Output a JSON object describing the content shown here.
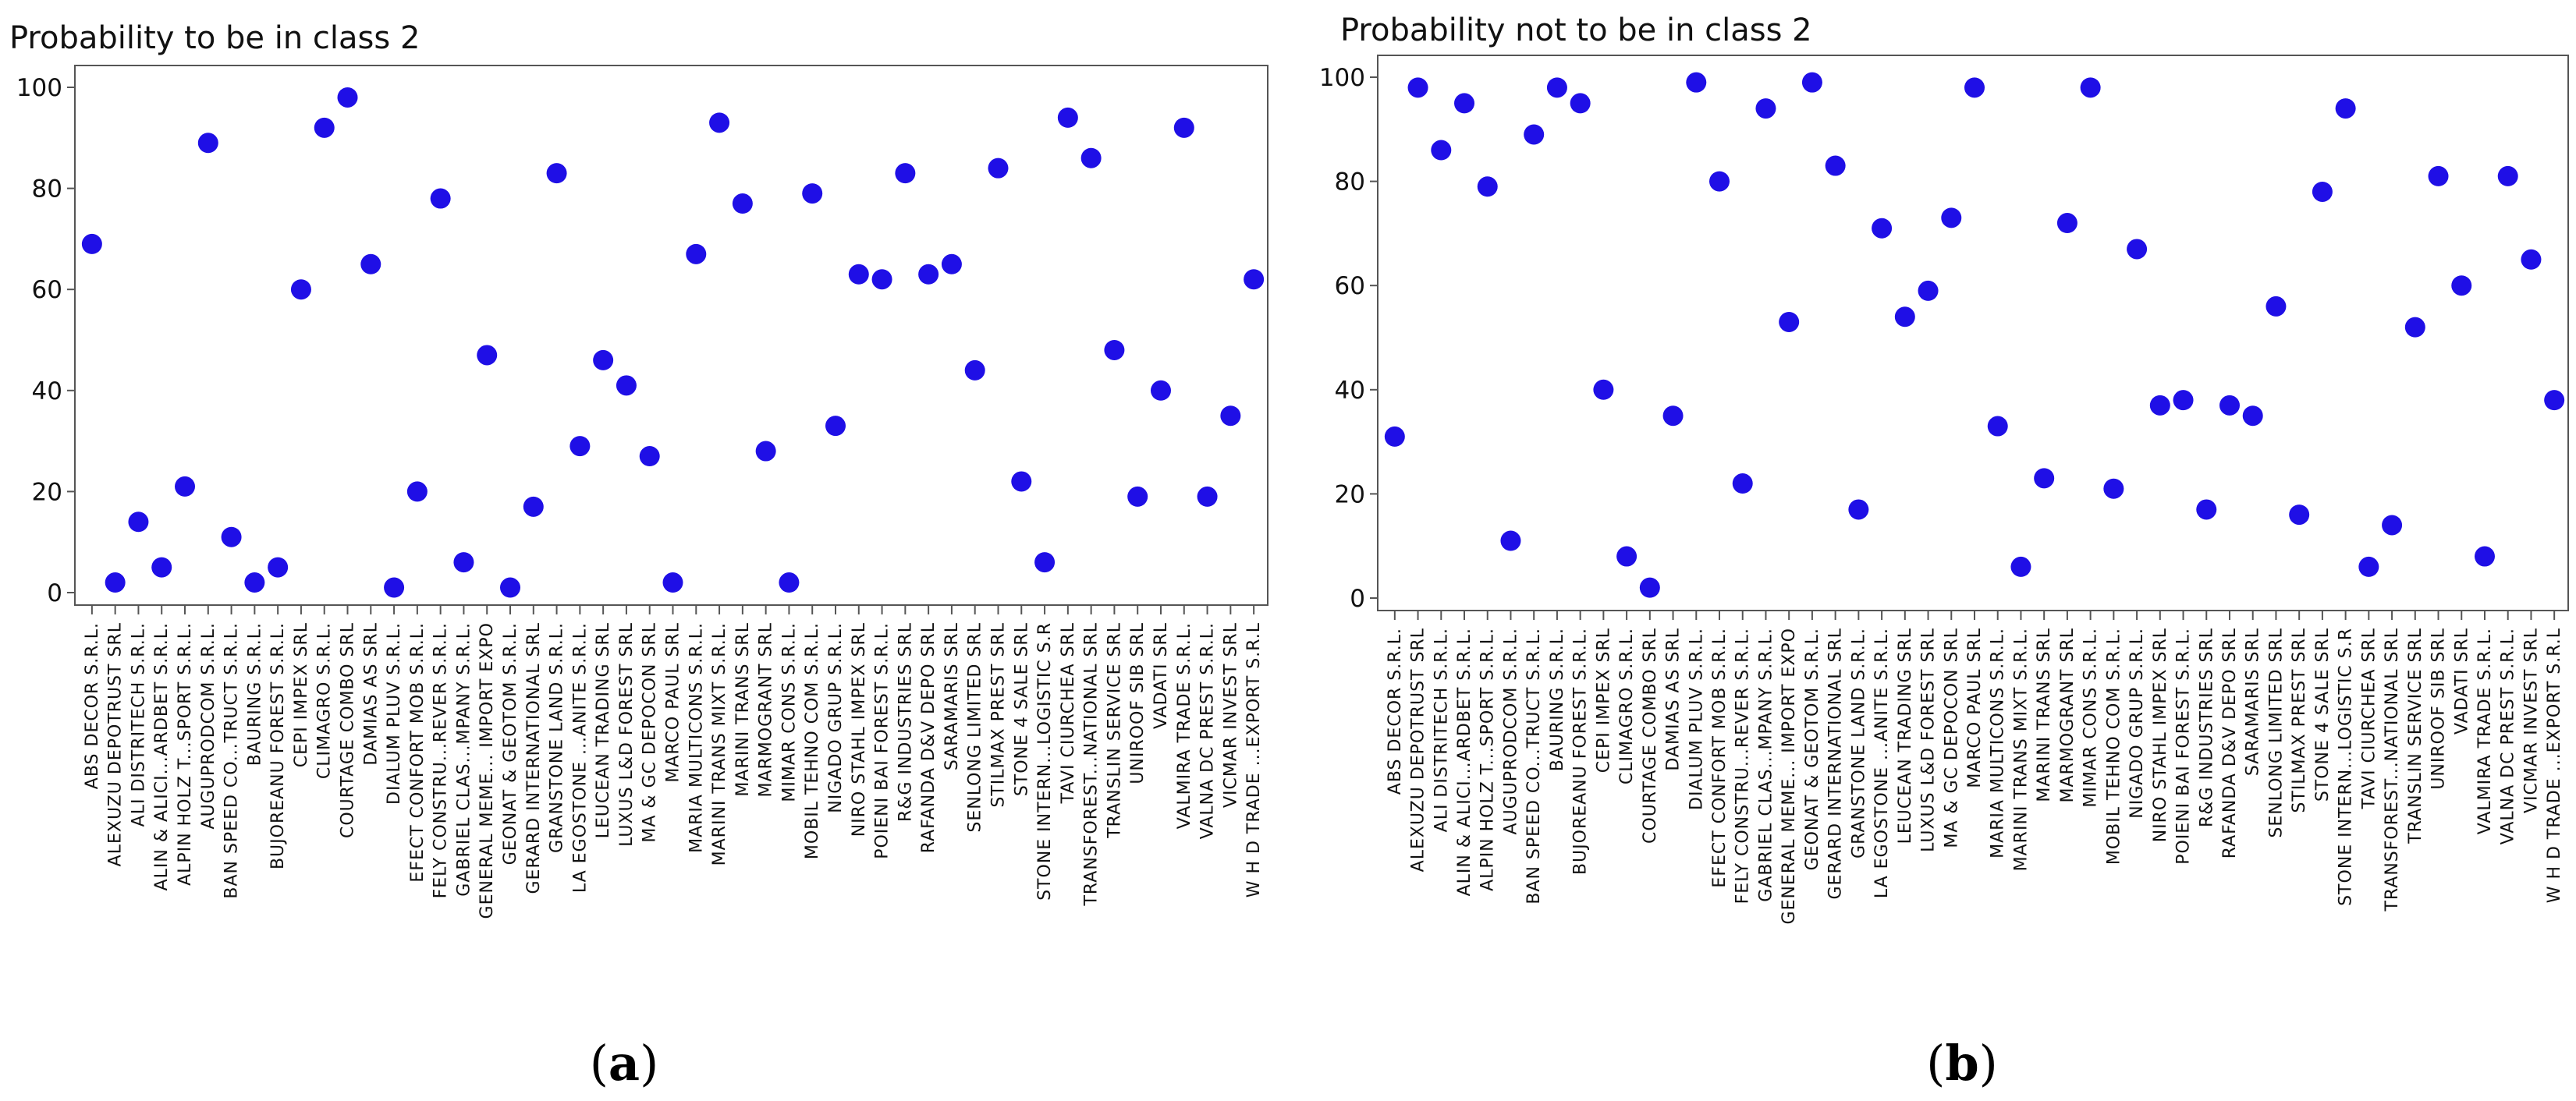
{
  "figure": {
    "panels": [
      "a",
      "b"
    ]
  },
  "colors": {
    "marker": "#1f0fe6",
    "axis": "#555555",
    "background": "#ffffff"
  },
  "chart_data": [
    {
      "type": "scatter",
      "title": "Probability to be in class 2",
      "panel_label": "a",
      "xlabel": "",
      "ylabel": "",
      "ylim": [
        0,
        100
      ],
      "yticks": [
        0,
        20,
        40,
        60,
        80,
        100
      ],
      "grid": false,
      "categories": [
        "ABS DECOR S.R.L.",
        "ALEXUZU DEPOTRUST SRL",
        "ALI DISTRITECH S.R.L.",
        "ALIN & ALICI...ARDBET S.R.L.",
        "ALPIN HOLZ T...SPORT S.R.L.",
        "AUGUPRODCOM S.R.L.",
        "BAN SPEED CO...TRUCT S.R.L.",
        "BAURING S.R.L.",
        "BUJOREANU FOREST S.R.L.",
        "CEPI IMPEX SRL",
        "CLIMAGRO S.R.L.",
        "COURTAGE COMBO SRL",
        "DAMIAS AS SRL",
        "DIALUM PLUV S.R.L.",
        "EFECT CONFORT MOB S.R.L.",
        "FELY CONSTRU...REVER S.R.L.",
        "GABRIEL CLAS...MPANY S.R.L.",
        "GENERAL MEME... IMPORT EXPO",
        "GEONAT & GEOTOM S.R.L.",
        "GERARD INTERNATIONAL SRL",
        "GRANSTONE LAND S.R.L.",
        "LA EGOSTONE ...ANITE S.R.L.",
        "LEUCEAN TRADING SRL",
        "LUXUS L&D FOREST SRL",
        "MA & GC DEPOCON SRL",
        "MARCO PAUL SRL",
        "MARIA MULTICONS S.R.L.",
        "MARINI TRANS MIXT S.R.L.",
        "MARINI TRANS SRL",
        "MARMOGRANT SRL",
        "MIMAR CONS S.R.L.",
        "MOBIL TEHNO COM S.R.L.",
        "NIGADO GRUP S.R.L.",
        "NIRO STAHL IMPEX SRL",
        "POIENI BAI FOREST S.R.L.",
        "R&G INDUSTRIES SRL",
        "RAFANDA D&V DEPO SRL",
        "SARAMARIS SRL",
        "SENLONG LIMITED SRL",
        "STILMAX PREST SRL",
        "STONE 4 SALE SRL",
        "STONE INTERN...LOGISTIC S.R",
        "TAVI CIURCHEA SRL",
        "TRANSFOREST...NATIONAL SRL",
        "TRANSLIN SERVICE SRL",
        "UNIROOF SIB SRL",
        "VADATI SRL",
        "VALMIRA TRADE S.R.L.",
        "VALNA DC PREST S.R.L.",
        "VICMAR INVEST SRL",
        "W H D TRADE ...EXPORT S.R.L"
      ],
      "values": [
        69,
        2,
        14,
        5,
        21,
        89,
        11,
        2,
        5,
        60,
        92,
        98,
        65,
        1,
        20,
        78,
        6,
        47,
        1,
        17,
        83,
        29,
        46,
        41,
        27,
        2,
        67,
        93,
        77,
        28,
        2,
        79,
        33,
        63,
        62,
        83,
        63,
        65,
        44,
        84,
        22,
        6,
        94,
        86,
        48,
        19,
        40,
        92,
        19,
        35,
        62
      ]
    },
    {
      "type": "scatter",
      "title": "Probability not to be in class 2",
      "panel_label": "b",
      "xlabel": "",
      "ylabel": "",
      "ylim": [
        0,
        100
      ],
      "yticks": [
        0,
        20,
        40,
        60,
        80,
        100
      ],
      "grid": false,
      "categories": [
        "ABS DECOR S.R.L.",
        "ALEXUZU DEPOTRUST SRL",
        "ALI DISTRITECH S.R.L.",
        "ALIN & ALICI...ARDBET S.R.L.",
        "ALPIN HOLZ T...SPORT S.R.L.",
        "AUGUPRODCOM S.R.L.",
        "BAN SPEED CO...TRUCT S.R.L.",
        "BAURING S.R.L.",
        "BUJOREANU FOREST S.R.L.",
        "CEPI IMPEX SRL",
        "CLIMAGRO S.R.L.",
        "COURTAGE COMBO SRL",
        "DAMIAS AS SRL",
        "DIALUM PLUV S.R.L.",
        "EFECT CONFORT MOB S.R.L.",
        "FELY CONSTRU...REVER S.R.L.",
        "GABRIEL CLAS...MPANY S.R.L.",
        "GENERAL MEME... IMPORT EXPO",
        "GEONAT & GEOTOM S.R.L.",
        "GERARD INTERNATIONAL SRL",
        "GRANSTONE LAND S.R.L.",
        "LA EGOSTONE ...ANITE S.R.L.",
        "LEUCEAN TRADING SRL",
        "LUXUS L&D FOREST SRL",
        "MA & GC DEPOCON SRL",
        "MARCO PAUL SRL",
        "MARIA MULTICONS S.R.L.",
        "MARINI TRANS MIXT S.R.L.",
        "MARINI TRANS SRL",
        "MARMOGRANT SRL",
        "MIMAR CONS S.R.L.",
        "MOBIL TEHNO COM S.R.L.",
        "NIGADO GRUP S.R.L.",
        "NIRO STAHL IMPEX SRL",
        "POIENI BAI FOREST S.R.L.",
        "R&G INDUSTRIES SRL",
        "RAFANDA D&V DEPO SRL",
        "SARAMARIS SRL",
        "SENLONG LIMITED SRL",
        "STILMAX PREST SRL",
        "STONE 4 SALE SRL",
        "STONE INTERN...LOGISTIC S.R",
        "TAVI CIURCHEA SRL",
        "TRANSFOREST...NATIONAL SRL",
        "TRANSLIN SERVICE SRL",
        "UNIROOF SIB SRL",
        "VADATI SRL",
        "VALMIRA TRADE S.R.L.",
        "VALNA DC PREST S.R.L.",
        "VICMAR INVEST SRL",
        "W H D TRADE ...EXPORT S.R.L"
      ],
      "values": [
        31,
        98,
        86,
        95,
        79,
        11,
        89,
        98,
        95,
        40,
        8,
        2,
        35,
        99,
        80,
        22,
        94,
        53,
        99,
        83,
        17,
        71,
        54,
        59,
        73,
        98,
        33,
        6,
        23,
        72,
        98,
        21,
        67,
        37,
        38,
        17,
        37,
        35,
        56,
        16,
        78,
        94,
        6,
        14,
        52,
        81,
        60,
        8,
        81,
        65,
        38
      ]
    }
  ]
}
